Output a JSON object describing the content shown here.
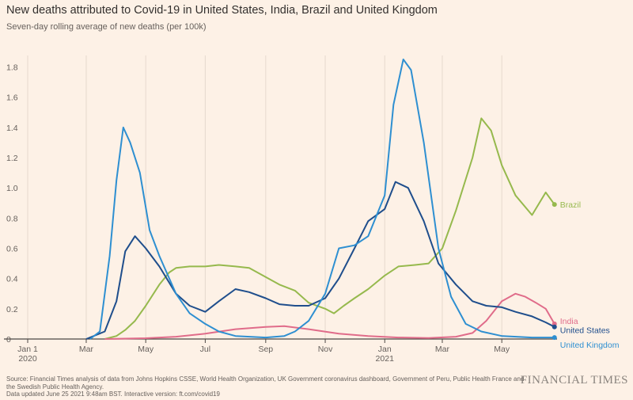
{
  "header": {
    "title": "New deaths attributed to Covid-19 in United States, India, Brazil and United Kingdom",
    "subtitle": "Seven-day rolling average of new deaths (per 100k)"
  },
  "footer": {
    "source_line1": "Source: Financial Times analysis of data from Johns Hopkins CSSE, World Health Organization, UK Government coronavirus dashboard, Government of Peru, Public Health France and",
    "source_line2": "the Swedish Public Health Agency.",
    "updated": "Data updated June 25 2021 9:48am BST. Interactive version: ft.com/covid19",
    "brand": "FINANCIAL TIMES"
  },
  "colors": {
    "background": "#fdf1e6",
    "grid": "#e6d9ce",
    "axis": "#4d4845",
    "brazil": "#96b94d",
    "india": "#e06c8a",
    "united_states": "#1f4e8c",
    "united_kingdom": "#2e8fd1"
  },
  "chart_data": {
    "type": "line",
    "title": "New deaths attributed to Covid-19 in United States, India, Brazil and United Kingdom",
    "subtitle": "Seven-day rolling average of new deaths (per 100k)",
    "ylim": [
      0,
      1.85
    ],
    "y_ticks": [
      0,
      0.2,
      0.4,
      0.6,
      0.8,
      1.0,
      1.2,
      1.4,
      1.6,
      1.8
    ],
    "y_tick_labels": [
      "0",
      "0.2",
      "0.4",
      "0.6",
      "0.8",
      "1.0",
      "1.2",
      "1.4",
      "1.6",
      "1.8"
    ],
    "xlim": [
      "2020-01-01",
      "2021-06-25"
    ],
    "x_ticks": [
      {
        "date": "2020-01-01",
        "label": "Jan 1",
        "sublabel": "2020"
      },
      {
        "date": "2020-03-01",
        "label": "Mar"
      },
      {
        "date": "2020-05-01",
        "label": "May"
      },
      {
        "date": "2020-07-01",
        "label": "Jul"
      },
      {
        "date": "2020-09-01",
        "label": "Sep"
      },
      {
        "date": "2020-11-01",
        "label": "Nov"
      },
      {
        "date": "2021-01-01",
        "label": "Jan",
        "sublabel": "2021"
      },
      {
        "date": "2021-03-01",
        "label": "Mar"
      },
      {
        "date": "2021-05-01",
        "label": "May"
      }
    ],
    "grid": "vertical",
    "legend": "end-of-line labels",
    "series": [
      {
        "name": "Brazil",
        "key": "brazil",
        "points": [
          [
            "2020-03-20",
            0
          ],
          [
            "2020-04-01",
            0.02
          ],
          [
            "2020-04-10",
            0.06
          ],
          [
            "2020-04-20",
            0.12
          ],
          [
            "2020-05-01",
            0.22
          ],
          [
            "2020-05-15",
            0.36
          ],
          [
            "2020-05-25",
            0.44
          ],
          [
            "2020-06-01",
            0.47
          ],
          [
            "2020-06-15",
            0.48
          ],
          [
            "2020-07-01",
            0.48
          ],
          [
            "2020-07-15",
            0.49
          ],
          [
            "2020-08-01",
            0.48
          ],
          [
            "2020-08-15",
            0.47
          ],
          [
            "2020-09-01",
            0.41
          ],
          [
            "2020-09-15",
            0.36
          ],
          [
            "2020-10-01",
            0.32
          ],
          [
            "2020-10-15",
            0.24
          ],
          [
            "2020-11-01",
            0.2
          ],
          [
            "2020-11-10",
            0.17
          ],
          [
            "2020-11-20",
            0.22
          ],
          [
            "2020-12-01",
            0.27
          ],
          [
            "2020-12-15",
            0.33
          ],
          [
            "2021-01-01",
            0.42
          ],
          [
            "2021-01-15",
            0.48
          ],
          [
            "2021-02-01",
            0.49
          ],
          [
            "2021-02-15",
            0.5
          ],
          [
            "2021-03-01",
            0.6
          ],
          [
            "2021-03-15",
            0.85
          ],
          [
            "2021-04-01",
            1.2
          ],
          [
            "2021-04-10",
            1.46
          ],
          [
            "2021-04-20",
            1.38
          ],
          [
            "2021-05-01",
            1.15
          ],
          [
            "2021-05-15",
            0.95
          ],
          [
            "2021-06-01",
            0.82
          ],
          [
            "2021-06-15",
            0.97
          ],
          [
            "2021-06-24",
            0.89
          ]
        ]
      },
      {
        "name": "India",
        "key": "india",
        "points": [
          [
            "2020-03-20",
            0
          ],
          [
            "2020-05-01",
            0.005
          ],
          [
            "2020-06-01",
            0.015
          ],
          [
            "2020-07-01",
            0.035
          ],
          [
            "2020-08-01",
            0.065
          ],
          [
            "2020-09-01",
            0.08
          ],
          [
            "2020-09-20",
            0.085
          ],
          [
            "2020-10-15",
            0.065
          ],
          [
            "2020-11-15",
            0.035
          ],
          [
            "2020-12-15",
            0.02
          ],
          [
            "2021-01-15",
            0.01
          ],
          [
            "2021-02-15",
            0.007
          ],
          [
            "2021-03-15",
            0.015
          ],
          [
            "2021-04-01",
            0.04
          ],
          [
            "2021-04-15",
            0.12
          ],
          [
            "2021-05-01",
            0.25
          ],
          [
            "2021-05-15",
            0.3
          ],
          [
            "2021-05-25",
            0.28
          ],
          [
            "2021-06-05",
            0.24
          ],
          [
            "2021-06-15",
            0.2
          ],
          [
            "2021-06-24",
            0.1
          ]
        ]
      },
      {
        "name": "United States",
        "key": "united_states",
        "points": [
          [
            "2020-03-01",
            0
          ],
          [
            "2020-03-20",
            0.05
          ],
          [
            "2020-04-01",
            0.25
          ],
          [
            "2020-04-10",
            0.58
          ],
          [
            "2020-04-20",
            0.68
          ],
          [
            "2020-05-01",
            0.6
          ],
          [
            "2020-05-15",
            0.48
          ],
          [
            "2020-06-01",
            0.3
          ],
          [
            "2020-06-15",
            0.22
          ],
          [
            "2020-07-01",
            0.18
          ],
          [
            "2020-07-15",
            0.25
          ],
          [
            "2020-08-01",
            0.33
          ],
          [
            "2020-08-15",
            0.31
          ],
          [
            "2020-09-01",
            0.27
          ],
          [
            "2020-09-15",
            0.23
          ],
          [
            "2020-10-01",
            0.22
          ],
          [
            "2020-10-15",
            0.22
          ],
          [
            "2020-11-01",
            0.27
          ],
          [
            "2020-11-15",
            0.4
          ],
          [
            "2020-12-01",
            0.6
          ],
          [
            "2020-12-15",
            0.78
          ],
          [
            "2021-01-01",
            0.86
          ],
          [
            "2021-01-12",
            1.04
          ],
          [
            "2021-01-25",
            1.0
          ],
          [
            "2021-02-10",
            0.78
          ],
          [
            "2021-02-25",
            0.5
          ],
          [
            "2021-03-15",
            0.36
          ],
          [
            "2021-04-01",
            0.25
          ],
          [
            "2021-04-15",
            0.22
          ],
          [
            "2021-05-01",
            0.21
          ],
          [
            "2021-05-15",
            0.18
          ],
          [
            "2021-06-01",
            0.15
          ],
          [
            "2021-06-15",
            0.11
          ],
          [
            "2021-06-24",
            0.08
          ]
        ]
      },
      {
        "name": "United Kingdom",
        "key": "united_kingdom",
        "points": [
          [
            "2020-03-05",
            0
          ],
          [
            "2020-03-15",
            0.05
          ],
          [
            "2020-03-25",
            0.55
          ],
          [
            "2020-04-01",
            1.05
          ],
          [
            "2020-04-08",
            1.4
          ],
          [
            "2020-04-15",
            1.3
          ],
          [
            "2020-04-25",
            1.1
          ],
          [
            "2020-05-05",
            0.72
          ],
          [
            "2020-05-15",
            0.55
          ],
          [
            "2020-06-01",
            0.3
          ],
          [
            "2020-06-15",
            0.17
          ],
          [
            "2020-07-01",
            0.1
          ],
          [
            "2020-07-15",
            0.05
          ],
          [
            "2020-08-01",
            0.02
          ],
          [
            "2020-09-01",
            0.01
          ],
          [
            "2020-09-20",
            0.02
          ],
          [
            "2020-10-01",
            0.05
          ],
          [
            "2020-10-15",
            0.12
          ],
          [
            "2020-11-01",
            0.3
          ],
          [
            "2020-11-15",
            0.6
          ],
          [
            "2020-12-01",
            0.62
          ],
          [
            "2020-12-15",
            0.68
          ],
          [
            "2021-01-01",
            0.95
          ],
          [
            "2021-01-10",
            1.55
          ],
          [
            "2021-01-20",
            1.85
          ],
          [
            "2021-01-28",
            1.78
          ],
          [
            "2021-02-10",
            1.3
          ],
          [
            "2021-02-25",
            0.6
          ],
          [
            "2021-03-10",
            0.28
          ],
          [
            "2021-03-25",
            0.1
          ],
          [
            "2021-04-10",
            0.05
          ],
          [
            "2021-05-01",
            0.02
          ],
          [
            "2021-06-01",
            0.01
          ],
          [
            "2021-06-24",
            0.01
          ]
        ]
      }
    ]
  }
}
